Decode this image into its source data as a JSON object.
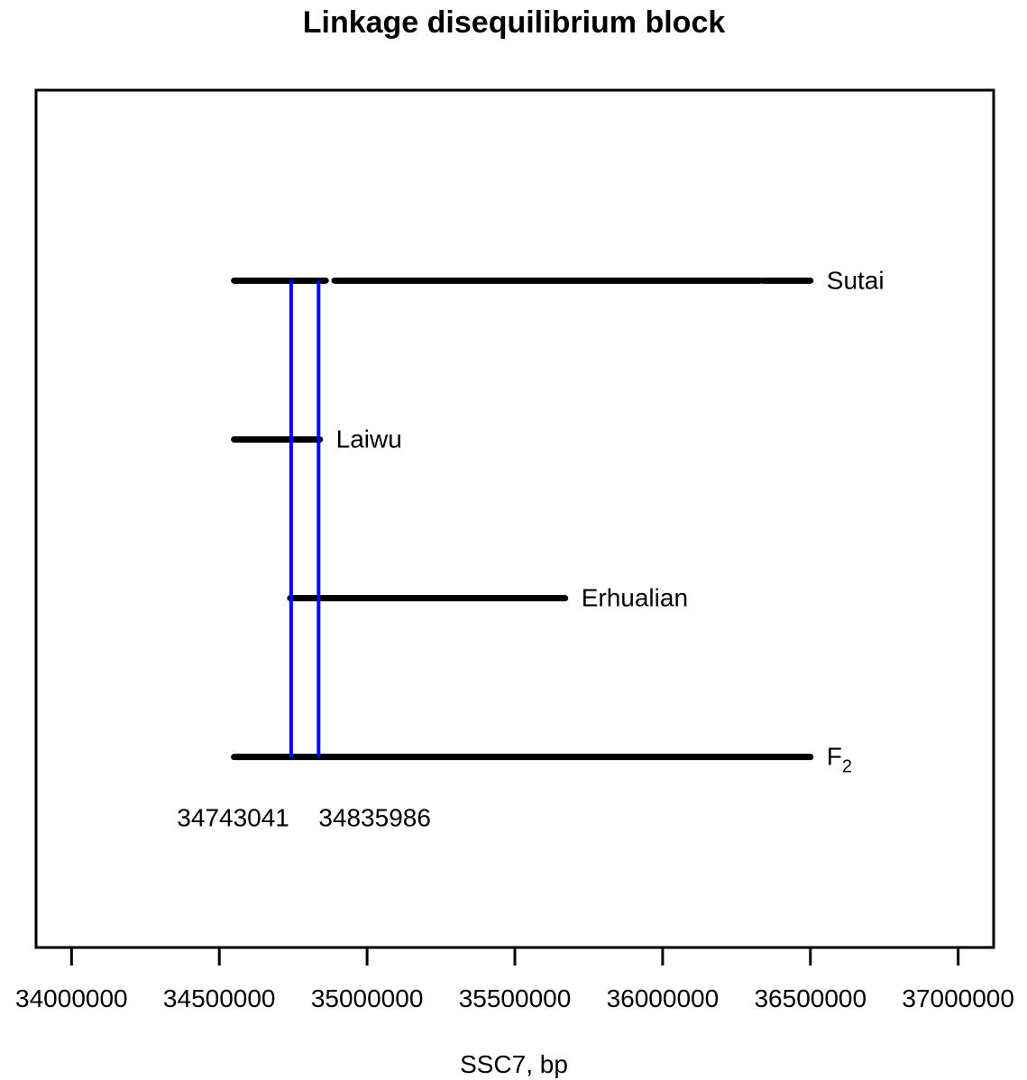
{
  "chart_data": {
    "type": "line",
    "title": "Linkage disequilibrium block",
    "xlabel": "SSC7, bp",
    "ylabel": "",
    "xlim": [
      33880000,
      37120000
    ],
    "ylim": [
      0,
      5.4
    ],
    "x_ticks": [
      34000000,
      34500000,
      35000000,
      35500000,
      36000000,
      36500000,
      37000000
    ],
    "x_tick_labels": [
      "34000000",
      "34500000",
      "35000000",
      "35500000",
      "36000000",
      "36500000",
      "37000000"
    ],
    "grid": false,
    "legend": "none",
    "series": [
      {
        "name": "Sutai",
        "label_main": "Sutai",
        "label_sub": "",
        "y": 4.2,
        "segments": [
          [
            34550000,
            34860000
          ],
          [
            34890000,
            36330000
          ],
          [
            36340000,
            36500000
          ]
        ]
      },
      {
        "name": "Laiwu",
        "label_main": "Laiwu",
        "label_sub": "",
        "y": 3.2,
        "segments": [
          [
            34550000,
            34840000
          ]
        ]
      },
      {
        "name": "Erhualian",
        "label_main": "Erhualian",
        "label_sub": "",
        "y": 2.2,
        "segments": [
          [
            34740000,
            35670000
          ]
        ]
      },
      {
        "name": "F2",
        "label_main": "F",
        "label_sub": "2",
        "y": 1.2,
        "segments": [
          [
            34550000,
            36500000
          ]
        ]
      }
    ],
    "vertical_markers": [
      {
        "x": 34743041,
        "label": "34743041",
        "y_from": 1.2,
        "y_to": 4.2,
        "color": "#0000ff"
      },
      {
        "x": 34835986,
        "label": "34835986",
        "y_from": 1.2,
        "y_to": 4.2,
        "color": "#0000ff"
      }
    ],
    "series_color": "#000000"
  }
}
